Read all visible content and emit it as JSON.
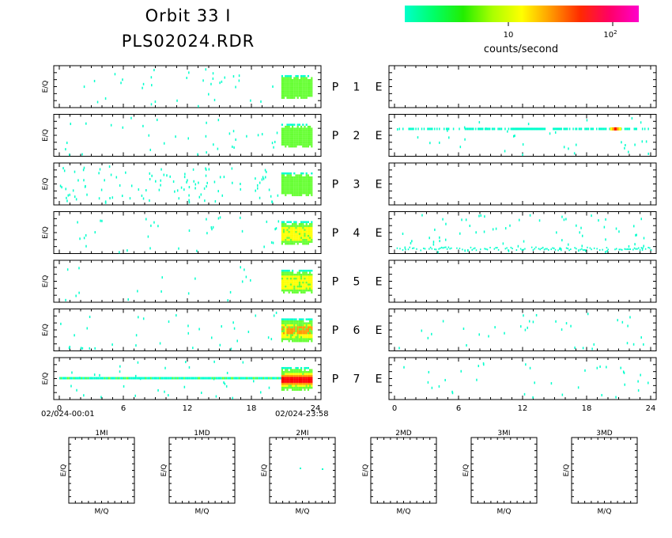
{
  "header": {
    "title_line1": "Orbit 33 I",
    "title_line2": "PLS02024.RDR"
  },
  "colorbar": {
    "label": "counts/second",
    "tick_10": "10",
    "tick_100_base": "10",
    "tick_100_exp": "2",
    "gradient": [
      "#00ffcc",
      "#00ff66",
      "#22ee00",
      "#aaff00",
      "#ffff00",
      "#ff9900",
      "#ff2a00",
      "#ff0066",
      "#ff00cc"
    ]
  },
  "colors": {
    "low": "#00ffcc",
    "mid": "#66ff33",
    "high": "#ffff00",
    "higher": "#ff9900",
    "highest": "#ff0000"
  },
  "axes": {
    "y_label": "E/Q",
    "x_ticks": [
      "0",
      "6",
      "12",
      "18",
      "24"
    ],
    "start_label": "02/024-00:01",
    "end_label": "02/024-23:58",
    "ion_label": "P",
    "electron_label": "E"
  },
  "rows": [
    {
      "channel": "1"
    },
    {
      "channel": "2"
    },
    {
      "channel": "3"
    },
    {
      "channel": "4"
    },
    {
      "channel": "5"
    },
    {
      "channel": "6"
    },
    {
      "channel": "7"
    }
  ],
  "mass_panels": {
    "x_label": "M/Q",
    "y_label": "E/Q",
    "titles": [
      "1MI",
      "1MD",
      "2MI",
      "2MD",
      "3MI",
      "3MD"
    ]
  },
  "chart_data": {
    "type": "heatmap",
    "x_range_hours": [
      0,
      24
    ],
    "x_tick_values": [
      0,
      6,
      12,
      18,
      24
    ],
    "ion_panels": [
      {
        "row": 1,
        "scatter_density": "low",
        "intense_hours": [
          20.8,
          23.6
        ],
        "peak_level": "mid"
      },
      {
        "row": 2,
        "scatter_density": "low",
        "intense_hours": [
          20.8,
          23.6
        ],
        "peak_level": "mid"
      },
      {
        "row": 3,
        "scatter_density": "high",
        "intense_hours": [
          20.8,
          23.6
        ],
        "peak_level": "mid"
      },
      {
        "row": 4,
        "scatter_density": "low",
        "intense_hours": [
          20.8,
          23.6
        ],
        "peak_level": "high"
      },
      {
        "row": 5,
        "scatter_density": "very_low",
        "intense_hours": [
          20.8,
          23.6
        ],
        "peak_level": "high"
      },
      {
        "row": 6,
        "scatter_density": "low",
        "intense_hours": [
          20.8,
          23.6
        ],
        "peak_level": "higher"
      },
      {
        "row": 7,
        "scatter_density": "low",
        "intense_hours": [
          20.8,
          23.6
        ],
        "peak_level": "highest",
        "continuous_band": true
      }
    ],
    "electron_panels": [
      {
        "row": 1,
        "scatter_density": "none"
      },
      {
        "row": 2,
        "scatter_density": "low",
        "band_hours": [
          0,
          24
        ],
        "hot_spot_hours": [
          20.2,
          21.2
        ]
      },
      {
        "row": 3,
        "scatter_density": "none"
      },
      {
        "row": 4,
        "scatter_density": "medium",
        "low_energy_band": true
      },
      {
        "row": 5,
        "scatter_density": "none"
      },
      {
        "row": 6,
        "scatter_density": "low"
      },
      {
        "row": 7,
        "scatter_density": "low"
      }
    ]
  }
}
